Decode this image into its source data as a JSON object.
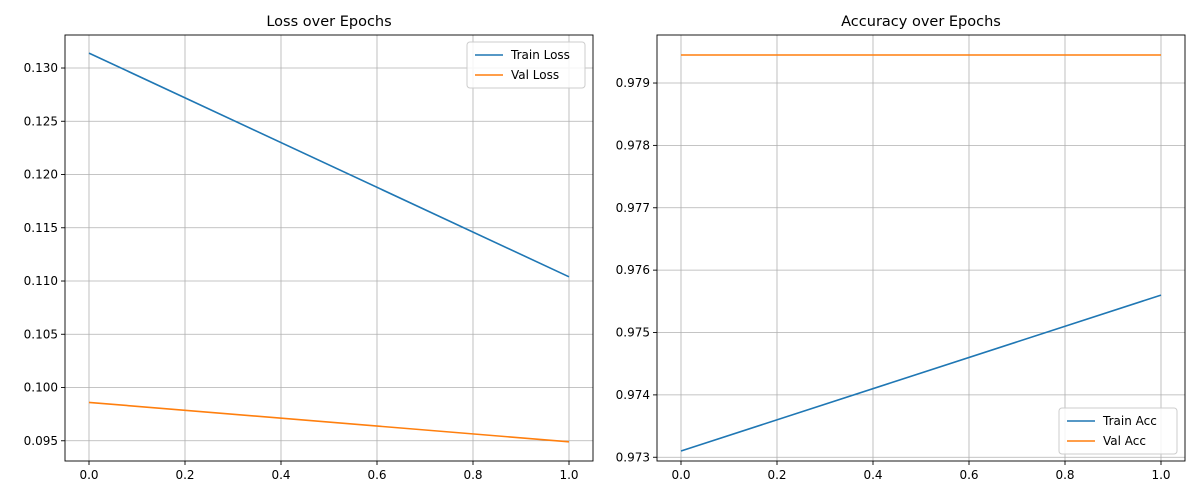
{
  "chart_data": [
    {
      "type": "line",
      "title": "Loss over Epochs",
      "xlabel": "",
      "ylabel": "",
      "xlim": [
        -0.05,
        1.05
      ],
      "ylim": [
        0.0931,
        0.1331
      ],
      "x_ticks": [
        0.0,
        0.2,
        0.4,
        0.6,
        0.8,
        1.0
      ],
      "x_tick_labels": [
        "0.0",
        "0.2",
        "0.4",
        "0.6",
        "0.8",
        "1.0"
      ],
      "y_ticks": [
        0.095,
        0.1,
        0.105,
        0.11,
        0.115,
        0.12,
        0.125,
        0.13
      ],
      "y_tick_labels": [
        "0.095",
        "0.100",
        "0.105",
        "0.110",
        "0.115",
        "0.120",
        "0.125",
        "0.130"
      ],
      "grid": true,
      "legend_position": "top-right",
      "x": [
        0,
        1
      ],
      "series": [
        {
          "name": "Train Loss",
          "color": "#1f77b4",
          "values": [
            0.1314,
            0.1104
          ]
        },
        {
          "name": "Val Loss",
          "color": "#ff7f0e",
          "values": [
            0.0986,
            0.0949
          ]
        }
      ]
    },
    {
      "type": "line",
      "title": "Accuracy over Epochs",
      "xlabel": "",
      "ylabel": "",
      "xlim": [
        -0.05,
        1.05
      ],
      "ylim": [
        0.97294,
        0.97977
      ],
      "x_ticks": [
        0.0,
        0.2,
        0.4,
        0.6,
        0.8,
        1.0
      ],
      "x_tick_labels": [
        "0.0",
        "0.2",
        "0.4",
        "0.6",
        "0.8",
        "1.0"
      ],
      "y_ticks": [
        0.973,
        0.974,
        0.975,
        0.976,
        0.977,
        0.978,
        0.979
      ],
      "y_tick_labels": [
        "0.973",
        "0.974",
        "0.975",
        "0.976",
        "0.977",
        "0.978",
        "0.979"
      ],
      "grid": true,
      "legend_position": "bottom-right",
      "x": [
        0,
        1
      ],
      "series": [
        {
          "name": "Train Acc",
          "color": "#1f77b4",
          "values": [
            0.9731,
            0.9756
          ]
        },
        {
          "name": "Val Acc",
          "color": "#ff7f0e",
          "values": [
            0.97945,
            0.97945
          ]
        }
      ]
    }
  ]
}
